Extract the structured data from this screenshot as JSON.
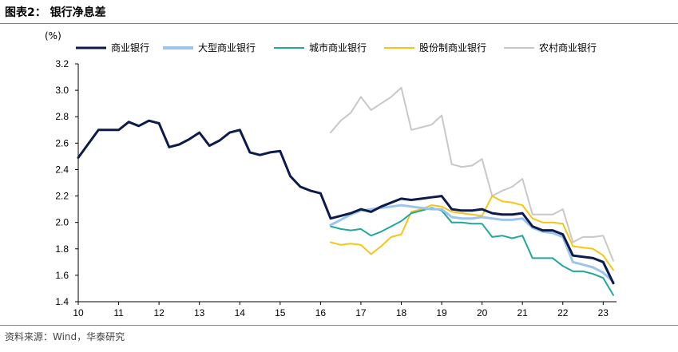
{
  "header": {
    "title": "图表2：  银行净息差"
  },
  "footer": {
    "source": "资料来源：Wind，华泰研究"
  },
  "chart_data": {
    "type": "line",
    "title": "银行净息差",
    "xlabel": "",
    "ylabel": "(%)",
    "xlim": [
      2010,
      2023.33
    ],
    "ylim": [
      1.4,
      3.2
    ],
    "x_ticks": [
      10,
      11,
      12,
      13,
      14,
      15,
      16,
      17,
      18,
      19,
      20,
      21,
      22,
      23
    ],
    "y_ticks": [
      "1.4",
      "1.6",
      "1.8",
      "2.0",
      "2.2",
      "2.4",
      "2.6",
      "2.8",
      "3.0",
      "3.2"
    ],
    "legend_position": "top",
    "series": [
      {
        "name": "商业银行",
        "color": "#0d1b4b",
        "width": 3,
        "x": [
          2010.0,
          2010.5,
          2010.75,
          2011.0,
          2011.25,
          2011.5,
          2011.75,
          2012.0,
          2012.25,
          2012.5,
          2012.75,
          2013.0,
          2013.25,
          2013.5,
          2013.75,
          2014.0,
          2014.25,
          2014.5,
          2014.75,
          2015.0,
          2015.25,
          2015.5,
          2015.75,
          2016.0,
          2016.25,
          2016.5,
          2016.75,
          2017.0,
          2017.25,
          2017.5,
          2017.75,
          2018.0,
          2018.25,
          2018.5,
          2018.75,
          2019.0,
          2019.25,
          2019.5,
          2019.75,
          2020.0,
          2020.25,
          2020.5,
          2020.75,
          2021.0,
          2021.25,
          2021.5,
          2021.75,
          2022.0,
          2022.25,
          2022.5,
          2022.75,
          2023.0,
          2023.25
        ],
        "values": [
          2.49,
          2.7,
          2.7,
          2.7,
          2.76,
          2.73,
          2.77,
          2.75,
          2.57,
          2.59,
          2.63,
          2.68,
          2.58,
          2.62,
          2.68,
          2.7,
          2.53,
          2.51,
          2.53,
          2.54,
          2.35,
          2.27,
          2.24,
          2.22,
          2.03,
          2.05,
          2.07,
          2.1,
          2.08,
          2.12,
          2.15,
          2.18,
          2.17,
          2.18,
          2.19,
          2.2,
          2.1,
          2.09,
          2.09,
          2.1,
          2.07,
          2.06,
          2.06,
          2.07,
          1.97,
          1.94,
          1.94,
          1.91,
          1.75,
          1.74,
          1.73,
          1.7,
          1.54
        ]
      },
      {
        "name": "大型商业银行",
        "color": "#9cc4ec",
        "width": 3,
        "x": [
          2016.25,
          2016.5,
          2016.75,
          2017.0,
          2017.25,
          2017.5,
          2017.75,
          2018.0,
          2018.25,
          2018.5,
          2018.75,
          2019.0,
          2019.25,
          2019.5,
          2019.75,
          2020.0,
          2020.25,
          2020.5,
          2020.75,
          2021.0,
          2021.25,
          2021.5,
          2021.75,
          2022.0,
          2022.25,
          2022.5,
          2022.75,
          2023.0,
          2023.25
        ],
        "values": [
          1.98,
          2.02,
          2.06,
          2.09,
          2.1,
          2.11,
          2.12,
          2.13,
          2.12,
          2.11,
          2.1,
          2.1,
          2.04,
          2.03,
          2.03,
          2.04,
          2.03,
          2.02,
          2.02,
          2.03,
          1.96,
          1.93,
          1.92,
          1.89,
          1.7,
          1.68,
          1.66,
          1.62,
          1.55
        ]
      },
      {
        "name": "城市商业银行",
        "color": "#21a89a",
        "width": 2,
        "x": [
          2016.25,
          2016.5,
          2016.75,
          2017.0,
          2017.25,
          2017.5,
          2017.75,
          2018.0,
          2018.25,
          2018.5,
          2018.75,
          2019.0,
          2019.25,
          2019.5,
          2019.75,
          2020.0,
          2020.25,
          2020.5,
          2020.75,
          2021.0,
          2021.25,
          2021.5,
          2021.75,
          2022.0,
          2022.25,
          2022.5,
          2022.75,
          2023.0,
          2023.25
        ],
        "values": [
          1.97,
          1.95,
          1.94,
          1.95,
          1.9,
          1.93,
          1.97,
          2.01,
          2.07,
          2.09,
          2.11,
          2.09,
          2.0,
          2.0,
          1.99,
          1.99,
          1.89,
          1.9,
          1.88,
          1.9,
          1.73,
          1.73,
          1.73,
          1.67,
          1.63,
          1.63,
          1.61,
          1.58,
          1.45
        ]
      },
      {
        "name": "股份制商业银行",
        "color": "#f5c518",
        "width": 2,
        "x": [
          2016.25,
          2016.5,
          2016.75,
          2017.0,
          2017.25,
          2017.5,
          2017.75,
          2018.0,
          2018.25,
          2018.5,
          2018.75,
          2019.0,
          2019.25,
          2019.5,
          2019.75,
          2020.0,
          2020.25,
          2020.5,
          2020.75,
          2021.0,
          2021.25,
          2021.5,
          2021.75,
          2022.0,
          2022.25,
          2022.5,
          2022.75,
          2023.0,
          2023.25
        ],
        "values": [
          1.85,
          1.83,
          1.84,
          1.83,
          1.76,
          1.82,
          1.89,
          1.91,
          2.08,
          2.1,
          2.13,
          2.12,
          2.08,
          2.07,
          2.06,
          2.05,
          2.2,
          2.16,
          2.15,
          2.13,
          2.03,
          2.0,
          2.0,
          1.99,
          1.82,
          1.81,
          1.8,
          1.75,
          1.64
        ]
      },
      {
        "name": "农村商业银行",
        "color": "#c8c8c8",
        "width": 2,
        "x": [
          2016.25,
          2016.5,
          2016.75,
          2017.0,
          2017.25,
          2017.5,
          2017.75,
          2018.0,
          2018.25,
          2018.5,
          2018.75,
          2019.0,
          2019.25,
          2019.5,
          2019.75,
          2020.0,
          2020.25,
          2020.5,
          2020.75,
          2021.0,
          2021.25,
          2021.5,
          2021.75,
          2022.0,
          2022.25,
          2022.5,
          2022.75,
          2023.0,
          2023.25
        ],
        "values": [
          2.68,
          2.77,
          2.83,
          2.95,
          2.85,
          2.9,
          2.95,
          3.02,
          2.7,
          2.72,
          2.74,
          2.81,
          2.44,
          2.42,
          2.43,
          2.48,
          2.2,
          2.24,
          2.27,
          2.33,
          2.06,
          2.06,
          2.06,
          2.1,
          1.85,
          1.89,
          1.89,
          1.9,
          1.71
        ]
      }
    ]
  }
}
